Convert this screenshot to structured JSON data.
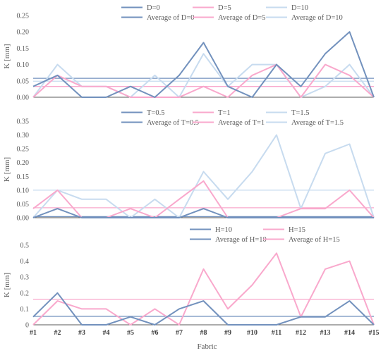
{
  "chart_data": [
    {
      "type": "line",
      "ylabel": "K  [mm]",
      "ylim": [
        0,
        0.25
      ],
      "yticks": [
        "0.00",
        "0.05",
        "0.10",
        "0.15",
        "0.20",
        "0.25"
      ],
      "categories": [
        "#1",
        "#2",
        "#3",
        "#4",
        "#5",
        "#6",
        "#7",
        "#8",
        "#9",
        "#10",
        "#11",
        "#12",
        "#13",
        "#14",
        "#15"
      ],
      "series": [
        {
          "name": "D=0",
          "color": "#7291bd",
          "values": [
            0.033,
            0.067,
            0,
            0,
            0.033,
            0,
            0.067,
            0.167,
            0.033,
            0,
            0.1,
            0.033,
            0.133,
            0.2,
            0
          ]
        },
        {
          "name": "D=5",
          "color": "#f9a8cc",
          "values": [
            0,
            0.067,
            0.033,
            0.033,
            0,
            0,
            0,
            0.033,
            0,
            0.067,
            0.1,
            0,
            0.1,
            0.067,
            0
          ]
        },
        {
          "name": "D=10",
          "color": "#c7dbef",
          "values": [
            0,
            0.1,
            0.033,
            0.033,
            0,
            0.067,
            0,
            0.133,
            0.033,
            0.1,
            0.1,
            0,
            0.033,
            0.1,
            0
          ]
        }
      ],
      "averages": [
        {
          "name": "Average of D=0",
          "color": "#7291bd",
          "value": 0.058
        },
        {
          "name": "Average of D=5",
          "color": "#f9a8cc",
          "value": 0.033
        },
        {
          "name": "Average of D=10",
          "color": "#c7dbef",
          "value": 0.049
        }
      ]
    },
    {
      "type": "line",
      "ylabel": "K  [mm]",
      "ylim": [
        0,
        0.35
      ],
      "yticks": [
        "0.00",
        "0.05",
        "0.10",
        "0.15",
        "0.20",
        "0.25",
        "0.30",
        "0.35"
      ],
      "categories": [
        "#1",
        "#2",
        "#3",
        "#4",
        "#5",
        "#6",
        "#7",
        "#8",
        "#9",
        "#10",
        "#11",
        "#12",
        "#13",
        "#14",
        "#15"
      ],
      "series": [
        {
          "name": "T=0.5",
          "color": "#7291bd",
          "values": [
            0,
            0.033,
            0,
            0,
            0,
            0,
            0,
            0.033,
            0,
            0,
            0,
            0,
            0,
            0,
            0
          ]
        },
        {
          "name": "T=1",
          "color": "#f9a8cc",
          "values": [
            0.033,
            0.1,
            0,
            0,
            0.033,
            0,
            0.067,
            0.133,
            0,
            0,
            0,
            0.033,
            0.033,
            0.1,
            0
          ]
        },
        {
          "name": "T=1.5",
          "color": "#c7dbef",
          "values": [
            0,
            0.1,
            0.067,
            0.067,
            0,
            0.067,
            0,
            0.167,
            0.067,
            0.167,
            0.3,
            0.033,
            0.233,
            0.267,
            0
          ]
        }
      ],
      "averages": [
        {
          "name": "Average of T=0.5",
          "color": "#7291bd",
          "value": 0.004
        },
        {
          "name": "Average of T=1",
          "color": "#f9a8cc",
          "value": 0.036
        },
        {
          "name": "Average of T=1.5",
          "color": "#c7dbef",
          "value": 0.1
        }
      ]
    },
    {
      "type": "line",
      "ylabel": "K  [mm]",
      "xlabel": "Fabric",
      "ylim": [
        0,
        0.5
      ],
      "yticks": [
        "0",
        "0.1",
        "0.2",
        "0.3",
        "0.4",
        "0.5"
      ],
      "categories": [
        "#1",
        "#2",
        "#3",
        "#4",
        "#5",
        "#6",
        "#7",
        "#8",
        "#9",
        "#10",
        "#11",
        "#12",
        "#13",
        "#14",
        "#15"
      ],
      "series": [
        {
          "name": "H=10",
          "color": "#7291bd",
          "values": [
            0.05,
            0.2,
            0,
            0,
            0.05,
            0,
            0.1,
            0.15,
            0,
            0,
            0,
            0.05,
            0.05,
            0.15,
            0
          ]
        },
        {
          "name": "H=15",
          "color": "#f9a8cc",
          "values": [
            0,
            0.15,
            0.1,
            0.1,
            0,
            0.1,
            0,
            0.35,
            0.1,
            0.25,
            0.45,
            0.05,
            0.35,
            0.4,
            0
          ]
        }
      ],
      "averages": [
        {
          "name": "Average of H=10",
          "color": "#7291bd",
          "value": 0.053
        },
        {
          "name": "Average of H=15",
          "color": "#f9a8cc",
          "value": 0.16
        }
      ]
    }
  ]
}
